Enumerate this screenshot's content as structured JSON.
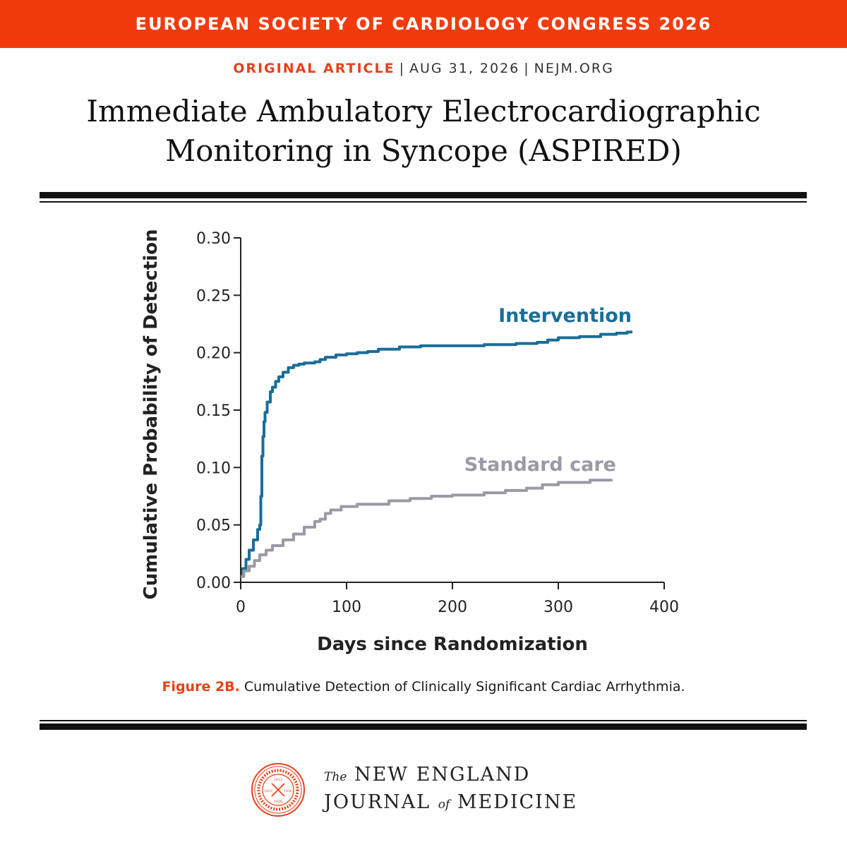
{
  "banner": {
    "text": "EUROPEAN SOCIETY OF CARDIOLOGY CONGRESS 2026"
  },
  "meta": {
    "kind": "ORIGINAL ARTICLE",
    "date": "AUG 31, 2026",
    "site": "NEJM.ORG"
  },
  "article": {
    "title_line1": "Immediate Ambulatory Electrocardiographic",
    "title_line2": "Monitoring in Syncope (ASPIRED)"
  },
  "caption": {
    "figure": "Figure 2B.",
    "text": " Cumulative Detection of Clinically Significant Cardiac Arrhythmia."
  },
  "footer": {
    "the": "The",
    "line1": "NEW ENGLAND",
    "line2a": "JOURNAL",
    "of": "of",
    "line2b": "MEDICINE",
    "seal_years": [
      "1812",
      "1823",
      "1828",
      "1926"
    ]
  },
  "colors": {
    "accent": "#f13b0d",
    "intervention": "#1a6d99",
    "standard": "#9a9aa2"
  },
  "chart_data": {
    "type": "line",
    "title": "",
    "xlabel": "Days since Randomization",
    "ylabel": "Cumulative Probability of Detection",
    "xlim": [
      0,
      400
    ],
    "ylim": [
      0,
      0.3
    ],
    "xticks": [
      "0",
      "100",
      "200",
      "300",
      "400"
    ],
    "yticks": [
      "0.00",
      "0.05",
      "0.10",
      "0.15",
      "0.20",
      "0.25",
      "0.30"
    ],
    "step": true,
    "series": [
      {
        "name": "Intervention",
        "color": "#1a6d99",
        "x": [
          0,
          2,
          5,
          8,
          12,
          16,
          18,
          19,
          20,
          21,
          22,
          23,
          25,
          28,
          30,
          33,
          36,
          40,
          45,
          50,
          55,
          60,
          70,
          75,
          80,
          90,
          100,
          110,
          120,
          130,
          150,
          170,
          200,
          230,
          260,
          280,
          290,
          300,
          320,
          340,
          355,
          365,
          370
        ],
        "y": [
          0.005,
          0.012,
          0.02,
          0.028,
          0.037,
          0.046,
          0.05,
          0.075,
          0.11,
          0.127,
          0.14,
          0.148,
          0.157,
          0.166,
          0.17,
          0.175,
          0.179,
          0.183,
          0.187,
          0.189,
          0.19,
          0.191,
          0.192,
          0.194,
          0.196,
          0.198,
          0.199,
          0.2,
          0.201,
          0.203,
          0.205,
          0.206,
          0.206,
          0.207,
          0.208,
          0.209,
          0.211,
          0.213,
          0.214,
          0.216,
          0.217,
          0.218,
          0.218
        ]
      },
      {
        "name": "Standard care",
        "color": "#9a9aa2",
        "x": [
          0,
          3,
          8,
          13,
          18,
          24,
          30,
          40,
          50,
          60,
          70,
          75,
          80,
          85,
          95,
          110,
          140,
          160,
          180,
          200,
          230,
          250,
          270,
          285,
          300,
          330,
          350
        ],
        "y": [
          0.005,
          0.01,
          0.014,
          0.019,
          0.024,
          0.028,
          0.032,
          0.037,
          0.042,
          0.048,
          0.053,
          0.055,
          0.06,
          0.063,
          0.066,
          0.068,
          0.071,
          0.073,
          0.075,
          0.076,
          0.078,
          0.08,
          0.082,
          0.085,
          0.087,
          0.089,
          0.09
        ]
      }
    ]
  }
}
